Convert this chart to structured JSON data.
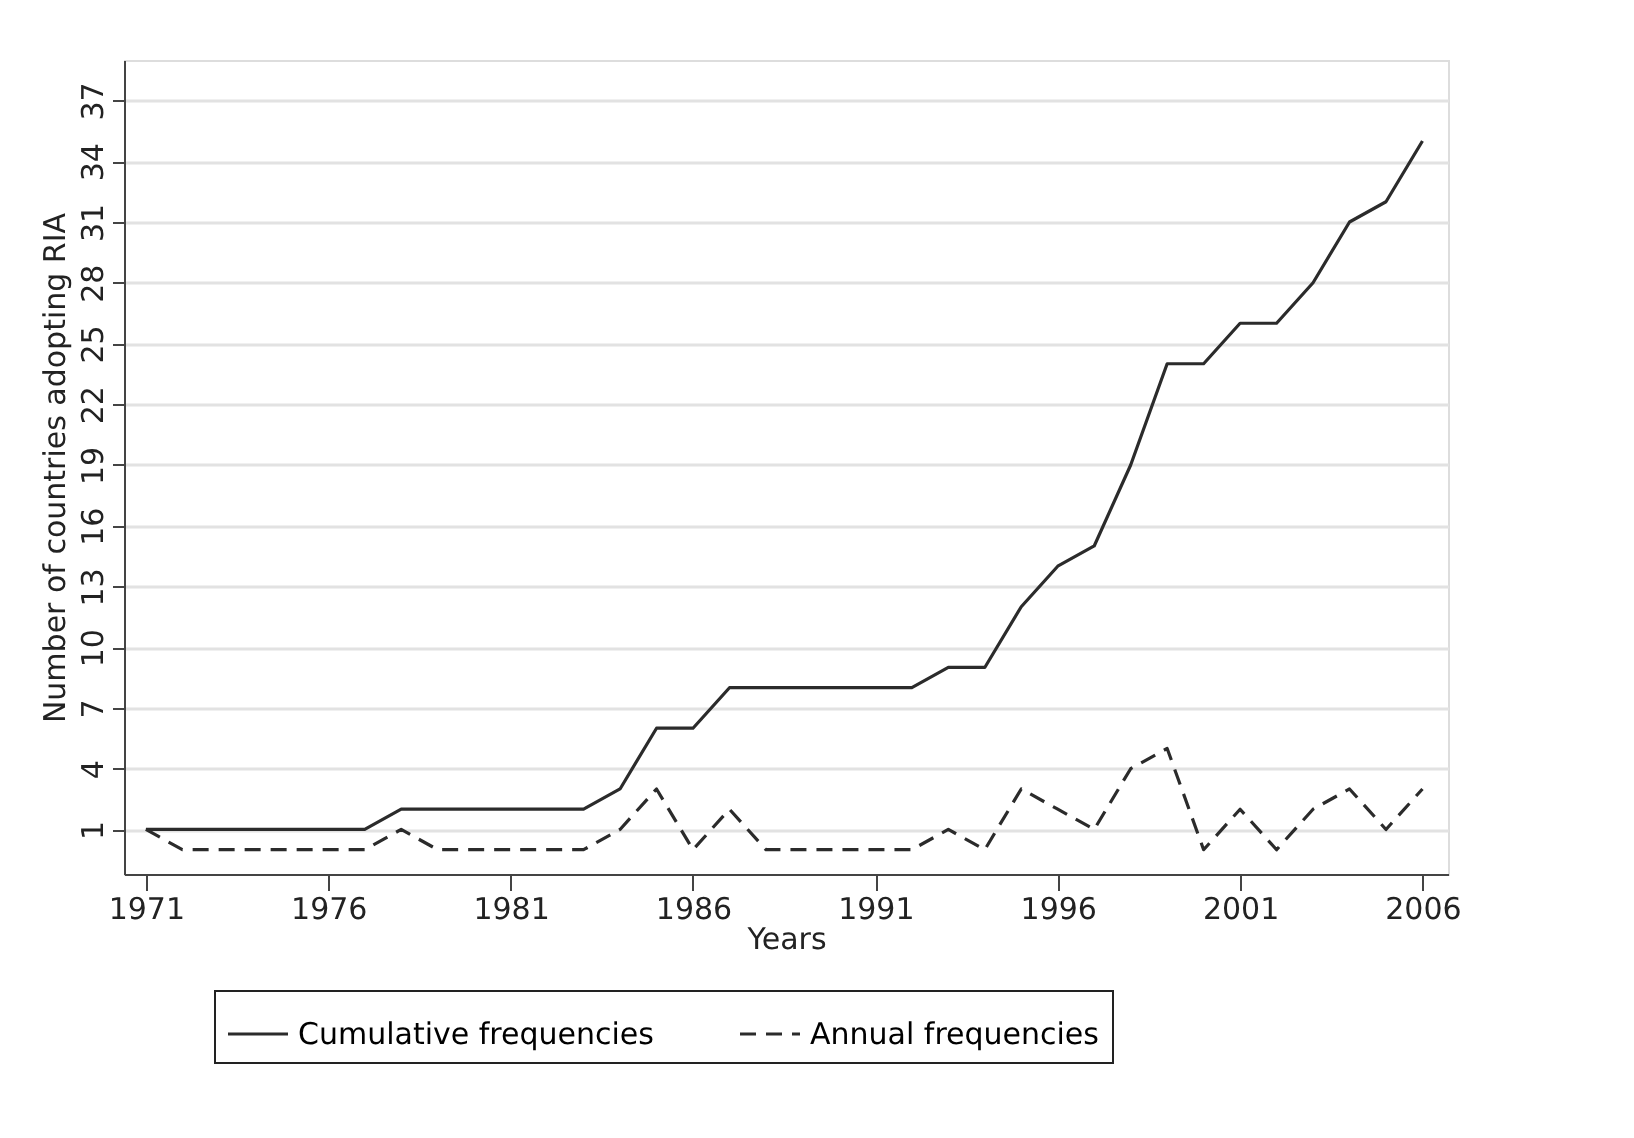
{
  "chart_data": {
    "type": "line",
    "xlabel": "Years",
    "ylabel": "Number of countries adopting RIA",
    "x": [
      1971,
      1972,
      1973,
      1974,
      1975,
      1976,
      1977,
      1978,
      1979,
      1980,
      1981,
      1982,
      1983,
      1984,
      1985,
      1986,
      1987,
      1988,
      1989,
      1990,
      1991,
      1992,
      1993,
      1994,
      1995,
      1996,
      1997,
      1998,
      1999,
      2000,
      2001,
      2002,
      2003,
      2004,
      2005,
      2006
    ],
    "series": [
      {
        "name": "Cumulative frequencies",
        "color": "#2b2b2b",
        "line_style": "solid",
        "values": [
          1,
          1,
          1,
          1,
          1,
          1,
          1,
          2,
          2,
          2,
          2,
          2,
          2,
          3,
          6,
          6,
          8,
          8,
          8,
          8,
          8,
          8,
          9,
          9,
          12,
          14,
          15,
          19,
          24,
          24,
          26,
          26,
          28,
          31,
          32,
          35
        ]
      },
      {
        "name": "Annual frequencies",
        "color": "#2b2b2b",
        "line_style": "dashed",
        "values": [
          1,
          0,
          0,
          0,
          0,
          0,
          0,
          1,
          0,
          0,
          0,
          0,
          0,
          1,
          3,
          0,
          2,
          0,
          0,
          0,
          0,
          0,
          1,
          0,
          3,
          2,
          1,
          4,
          5,
          0,
          2,
          0,
          2,
          3,
          1,
          3
        ]
      }
    ],
    "xlim": [
      1970.4,
      2006.7
    ],
    "xticks": [
      1971,
      1976,
      1981,
      1986,
      1991,
      1996,
      2001,
      2006
    ],
    "ylim": [
      -1.2,
      39
    ],
    "yticks": [
      1,
      4,
      7,
      10,
      13,
      16,
      19,
      22,
      25,
      28,
      31,
      34,
      37
    ],
    "grid": "y",
    "legend": "bottom",
    "marker": "none"
  }
}
